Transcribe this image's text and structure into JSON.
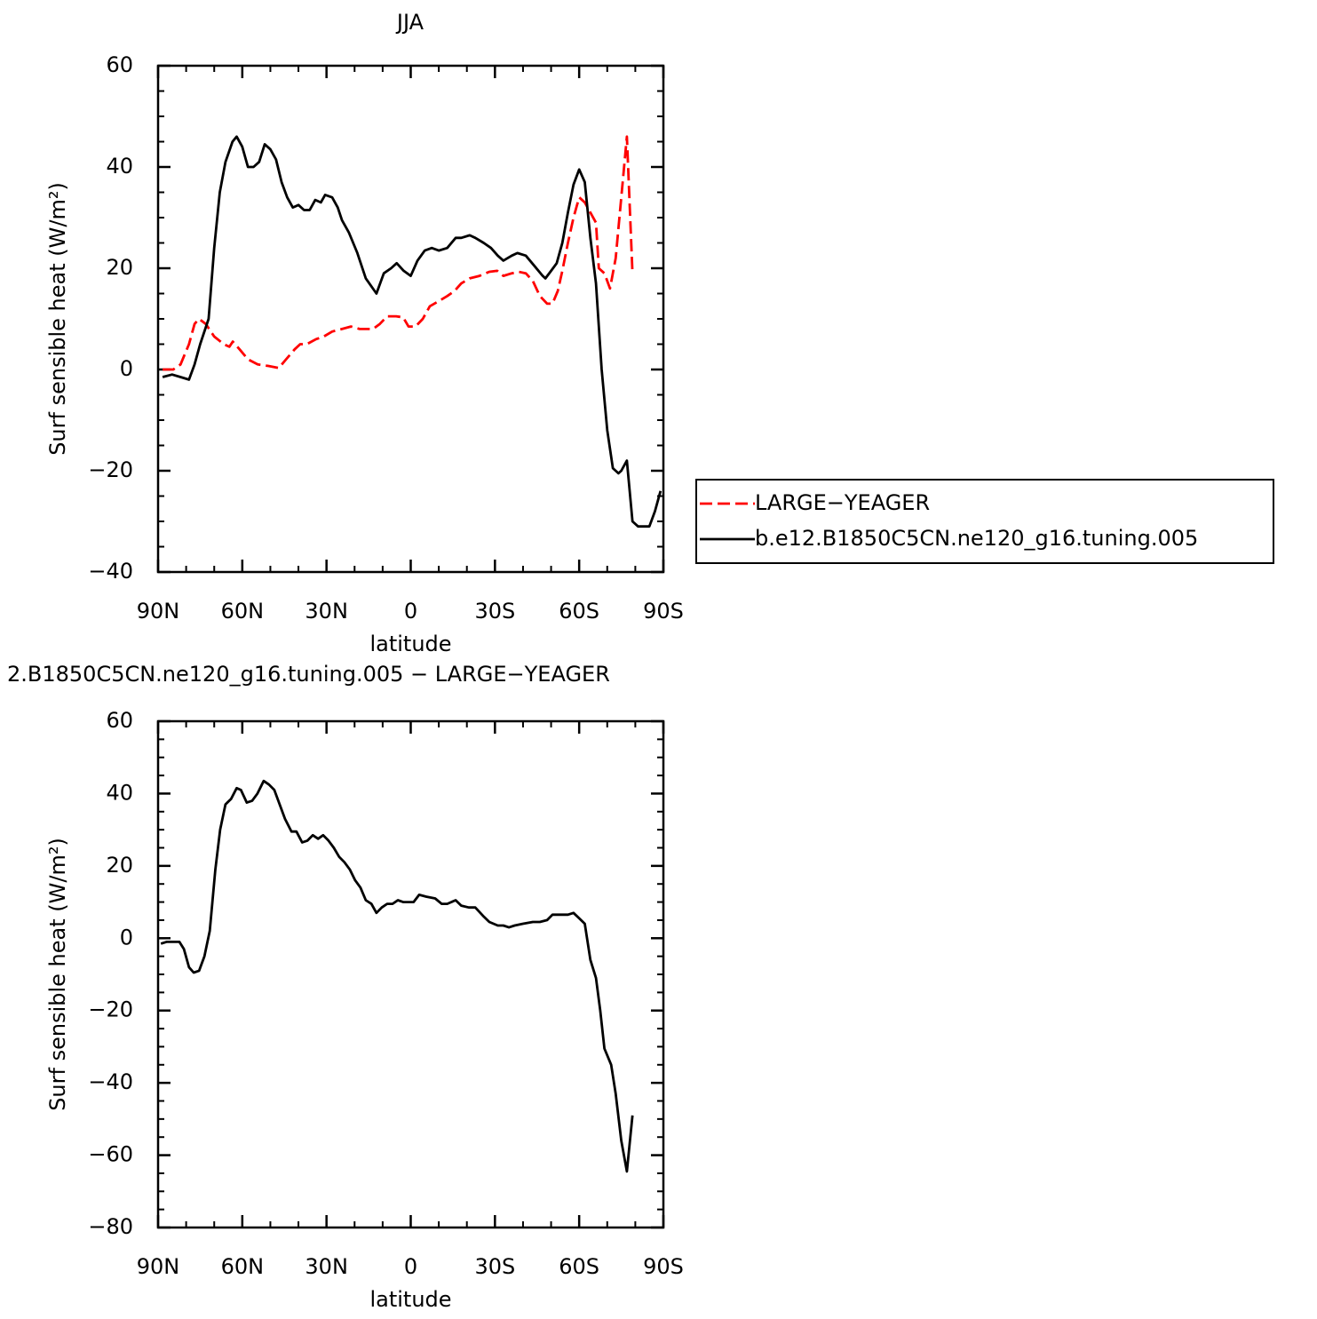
{
  "chart_data": [
    {
      "type": "line",
      "title": "JJA",
      "xlabel": "latitude",
      "ylabel": "Surf sensible heat (W/m²)",
      "xlim": [
        90,
        -90
      ],
      "ylim": [
        -40,
        60
      ],
      "xticks": [
        {
          "value": 90,
          "label": "90N"
        },
        {
          "value": 60,
          "label": "60N"
        },
        {
          "value": 30,
          "label": "30N"
        },
        0,
        {
          "value": -30,
          "label": "30S"
        },
        {
          "value": -60,
          "label": "60S"
        },
        {
          "value": -90,
          "label": "90S"
        }
      ],
      "yticks": [
        {
          "value": -40,
          "label": "−40"
        },
        {
          "value": -20,
          "label": "−20"
        },
        0,
        20,
        40,
        60
      ],
      "legend": "right",
      "series": [
        {
          "name": "LARGE−YEAGER",
          "color": "#ff0000",
          "dashed": true,
          "x": [
            88.4,
            84.6,
            82,
            79,
            77,
            75.4,
            73,
            70,
            66.6,
            64.6,
            63.4,
            61,
            58,
            54.5,
            50.7,
            47,
            44.4,
            41.3,
            39.4,
            37,
            33.7,
            31,
            28,
            24.5,
            21.3,
            18.2,
            16,
            13.4,
            11,
            8.4,
            5.2,
            2.7,
            0.8,
            -1.7,
            -4.3,
            -6.8,
            -10,
            -13,
            -15.6,
            -18,
            -21,
            -24.5,
            -28,
            -30.8,
            -33,
            -36,
            -38.5,
            -41,
            -43.5,
            -46,
            -48.6,
            -50.5,
            -52.4,
            -54,
            -56,
            -58,
            -60,
            -62,
            -64,
            -66,
            -67,
            -69,
            -71,
            -73,
            -75,
            -77,
            -79
          ],
          "values": [
            0,
            0,
            1,
            5,
            9,
            10,
            9,
            6.5,
            5,
            4.5,
            5.5,
            4,
            2,
            1,
            0.7,
            0.3,
            2,
            4,
            5,
            5,
            6,
            6.5,
            7.5,
            8,
            8.5,
            8,
            8,
            8,
            9,
            10.5,
            10.5,
            10.3,
            8.5,
            8.5,
            10,
            12.5,
            13.5,
            14.5,
            15.5,
            17,
            18,
            18.5,
            19.3,
            19.5,
            18.5,
            19,
            19.3,
            19,
            17.5,
            14.5,
            13,
            13,
            15.5,
            19.5,
            25,
            30,
            34,
            33,
            31,
            29,
            20,
            19,
            16,
            22,
            34,
            46,
            19
          ]
        },
        {
          "name": "b.e12.B1850C5CN.ne120_g16.tuning.005",
          "color": "#000000",
          "dashed": false,
          "x": [
            88.4,
            85,
            82,
            79,
            77,
            75,
            72,
            70,
            68,
            66,
            63.5,
            62,
            60,
            58,
            56,
            54,
            52,
            50,
            48,
            46,
            44,
            42,
            40,
            38,
            36,
            34,
            32,
            30.5,
            28,
            26,
            24.5,
            22,
            19,
            16,
            12.2,
            9.6,
            7,
            5,
            2.5,
            0,
            -2.4,
            -5,
            -7.5,
            -10,
            -13,
            -16,
            -18,
            -21,
            -23,
            -26,
            -28.6,
            -31,
            -33,
            -36,
            -38,
            -41,
            -44,
            -47,
            -48,
            -50,
            -52,
            -54,
            -56,
            -58,
            -60,
            -62,
            -64,
            -66,
            -68,
            -70,
            -72,
            -74,
            -75,
            -77,
            -79,
            -81,
            -85,
            -87,
            -89
          ],
          "values": [
            -1.5,
            -1,
            -1.5,
            -2,
            1,
            5,
            10,
            24,
            35,
            41,
            45,
            46,
            44,
            40,
            40,
            41,
            44.5,
            43.5,
            41.5,
            37,
            34,
            32,
            32.5,
            31.5,
            31.5,
            33.5,
            33,
            34.5,
            34,
            32,
            29.5,
            27,
            23,
            18,
            15,
            19,
            20,
            21,
            19.5,
            18.5,
            21.5,
            23.5,
            24,
            23.5,
            24,
            26,
            26,
            26.5,
            26,
            25,
            24,
            22.5,
            21.5,
            22.5,
            23,
            22.5,
            20.5,
            18.5,
            18,
            19.5,
            21,
            25,
            31,
            36.5,
            39.5,
            37,
            26,
            17,
            0,
            -12,
            -19.5,
            -20.5,
            -20,
            -18,
            -30,
            -31,
            -31,
            -28,
            -24
          ]
        }
      ]
    },
    {
      "type": "line",
      "title": "2.B1850C5CN.ne120_g16.tuning.005 − LARGE−YEAGER",
      "xlabel": "latitude",
      "ylabel": "Surf sensible heat (W/m²)",
      "xlim": [
        90,
        -90
      ],
      "ylim": [
        -80,
        60
      ],
      "xticks": [
        {
          "value": 90,
          "label": "90N"
        },
        {
          "value": 60,
          "label": "60N"
        },
        {
          "value": 30,
          "label": "30N"
        },
        0,
        {
          "value": -30,
          "label": "30S"
        },
        {
          "value": -60,
          "label": "60S"
        },
        {
          "value": -90,
          "label": "90S"
        }
      ],
      "yticks": [
        {
          "value": -80,
          "label": "−80"
        },
        {
          "value": -60,
          "label": "−60"
        },
        {
          "value": -40,
          "label": "−40"
        },
        {
          "value": -20,
          "label": "−20"
        },
        0,
        20,
        40,
        60
      ],
      "color": "#000000",
      "x": [
        89,
        87,
        84.3,
        82.4,
        80.8,
        79,
        77.3,
        75.4,
        73.5,
        71.6,
        69.6,
        67.9,
        66,
        64,
        62,
        60.5,
        58.4,
        56.5,
        54.6,
        52.4,
        50.5,
        48.6,
        46.7,
        44.8,
        42.5,
        40.7,
        38.7,
        36.8,
        34.9,
        33,
        31.2,
        29.3,
        27.4,
        25.5,
        23.6,
        21.7,
        19.8,
        17.9,
        16,
        14,
        12.2,
        10.3,
        8.4,
        6.5,
        4.6,
        2.7,
        0.8,
        -1,
        -3,
        -5.5,
        -8.7,
        -11,
        -13,
        -16,
        -18,
        -20.7,
        -23,
        -26,
        -28,
        -31,
        -33,
        -35,
        -37,
        -40,
        -43.5,
        -46,
        -48.6,
        -50.5,
        -53,
        -56,
        -58,
        -60,
        -62,
        -64,
        -66,
        -67.5,
        -69,
        -71.4,
        -73,
        -75,
        -77,
        -79
      ],
      "values": [
        -1.5,
        -1,
        -1,
        -1,
        -3,
        -8,
        -9.5,
        -9,
        -5,
        2,
        19,
        30,
        37,
        38.5,
        41.5,
        41,
        37.5,
        38,
        40,
        43.5,
        42.5,
        41,
        37,
        33,
        29.5,
        29.5,
        26.5,
        27,
        28.5,
        27.5,
        28.5,
        27,
        25,
        22.5,
        21,
        19,
        16,
        14,
        10.5,
        9.5,
        7,
        8.5,
        9.5,
        9.5,
        10.5,
        10,
        10,
        10,
        12,
        11.5,
        11,
        9.5,
        9.5,
        10.5,
        9,
        8.5,
        8.5,
        6,
        4.5,
        3.5,
        3.5,
        3,
        3.5,
        4,
        4.5,
        4.5,
        5,
        6.5,
        6.5,
        6.5,
        7,
        5.5,
        4,
        -6,
        -11,
        -20,
        -30.5,
        -35,
        -43,
        -56,
        -64.5,
        -49
      ]
    }
  ]
}
